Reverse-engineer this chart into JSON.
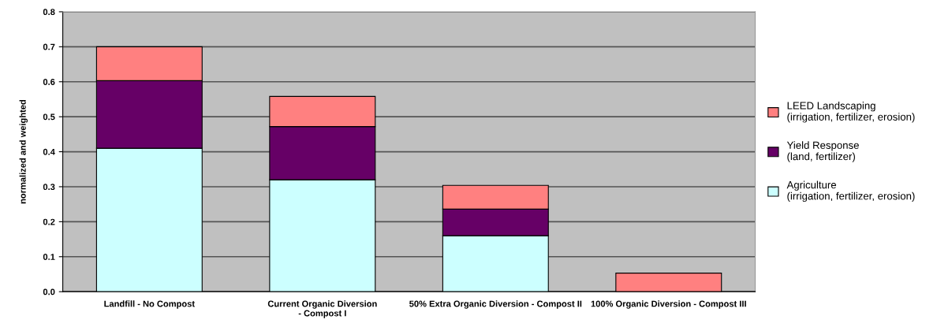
{
  "chart_data": {
    "type": "bar",
    "stacked": true,
    "ylabel": "normalized and weighted",
    "categories": [
      "Landfill - No Compost",
      "Current Organic Diversion\n- Compost I",
      "50% Extra Organic Diversion - Compost II",
      "100% Organic Diversion - Compost III"
    ],
    "series": [
      {
        "name": "Agriculture\n(irrigation, fertilizer, erosion)",
        "color": "#ccffff",
        "values": [
          0.41,
          0.32,
          0.16,
          0
        ]
      },
      {
        "name": "Yield Response\n(land, fertilizer)",
        "color": "#660066",
        "values": [
          0.193,
          0.152,
          0.076,
          0
        ]
      },
      {
        "name": "LEED Landscaping\n(irrigation, fertilizer, erosion)",
        "color": "#ff8080",
        "values": [
          0.097,
          0.086,
          0.068,
          0.053
        ]
      }
    ],
    "ylim": [
      0,
      0.8
    ],
    "yticks": [
      {
        "value": 0,
        "label": "0.0"
      },
      0.1,
      0.2,
      0.3,
      0.4,
      0.5,
      0.6,
      0.7,
      0.8
    ],
    "grid": "y",
    "legend": "right"
  }
}
